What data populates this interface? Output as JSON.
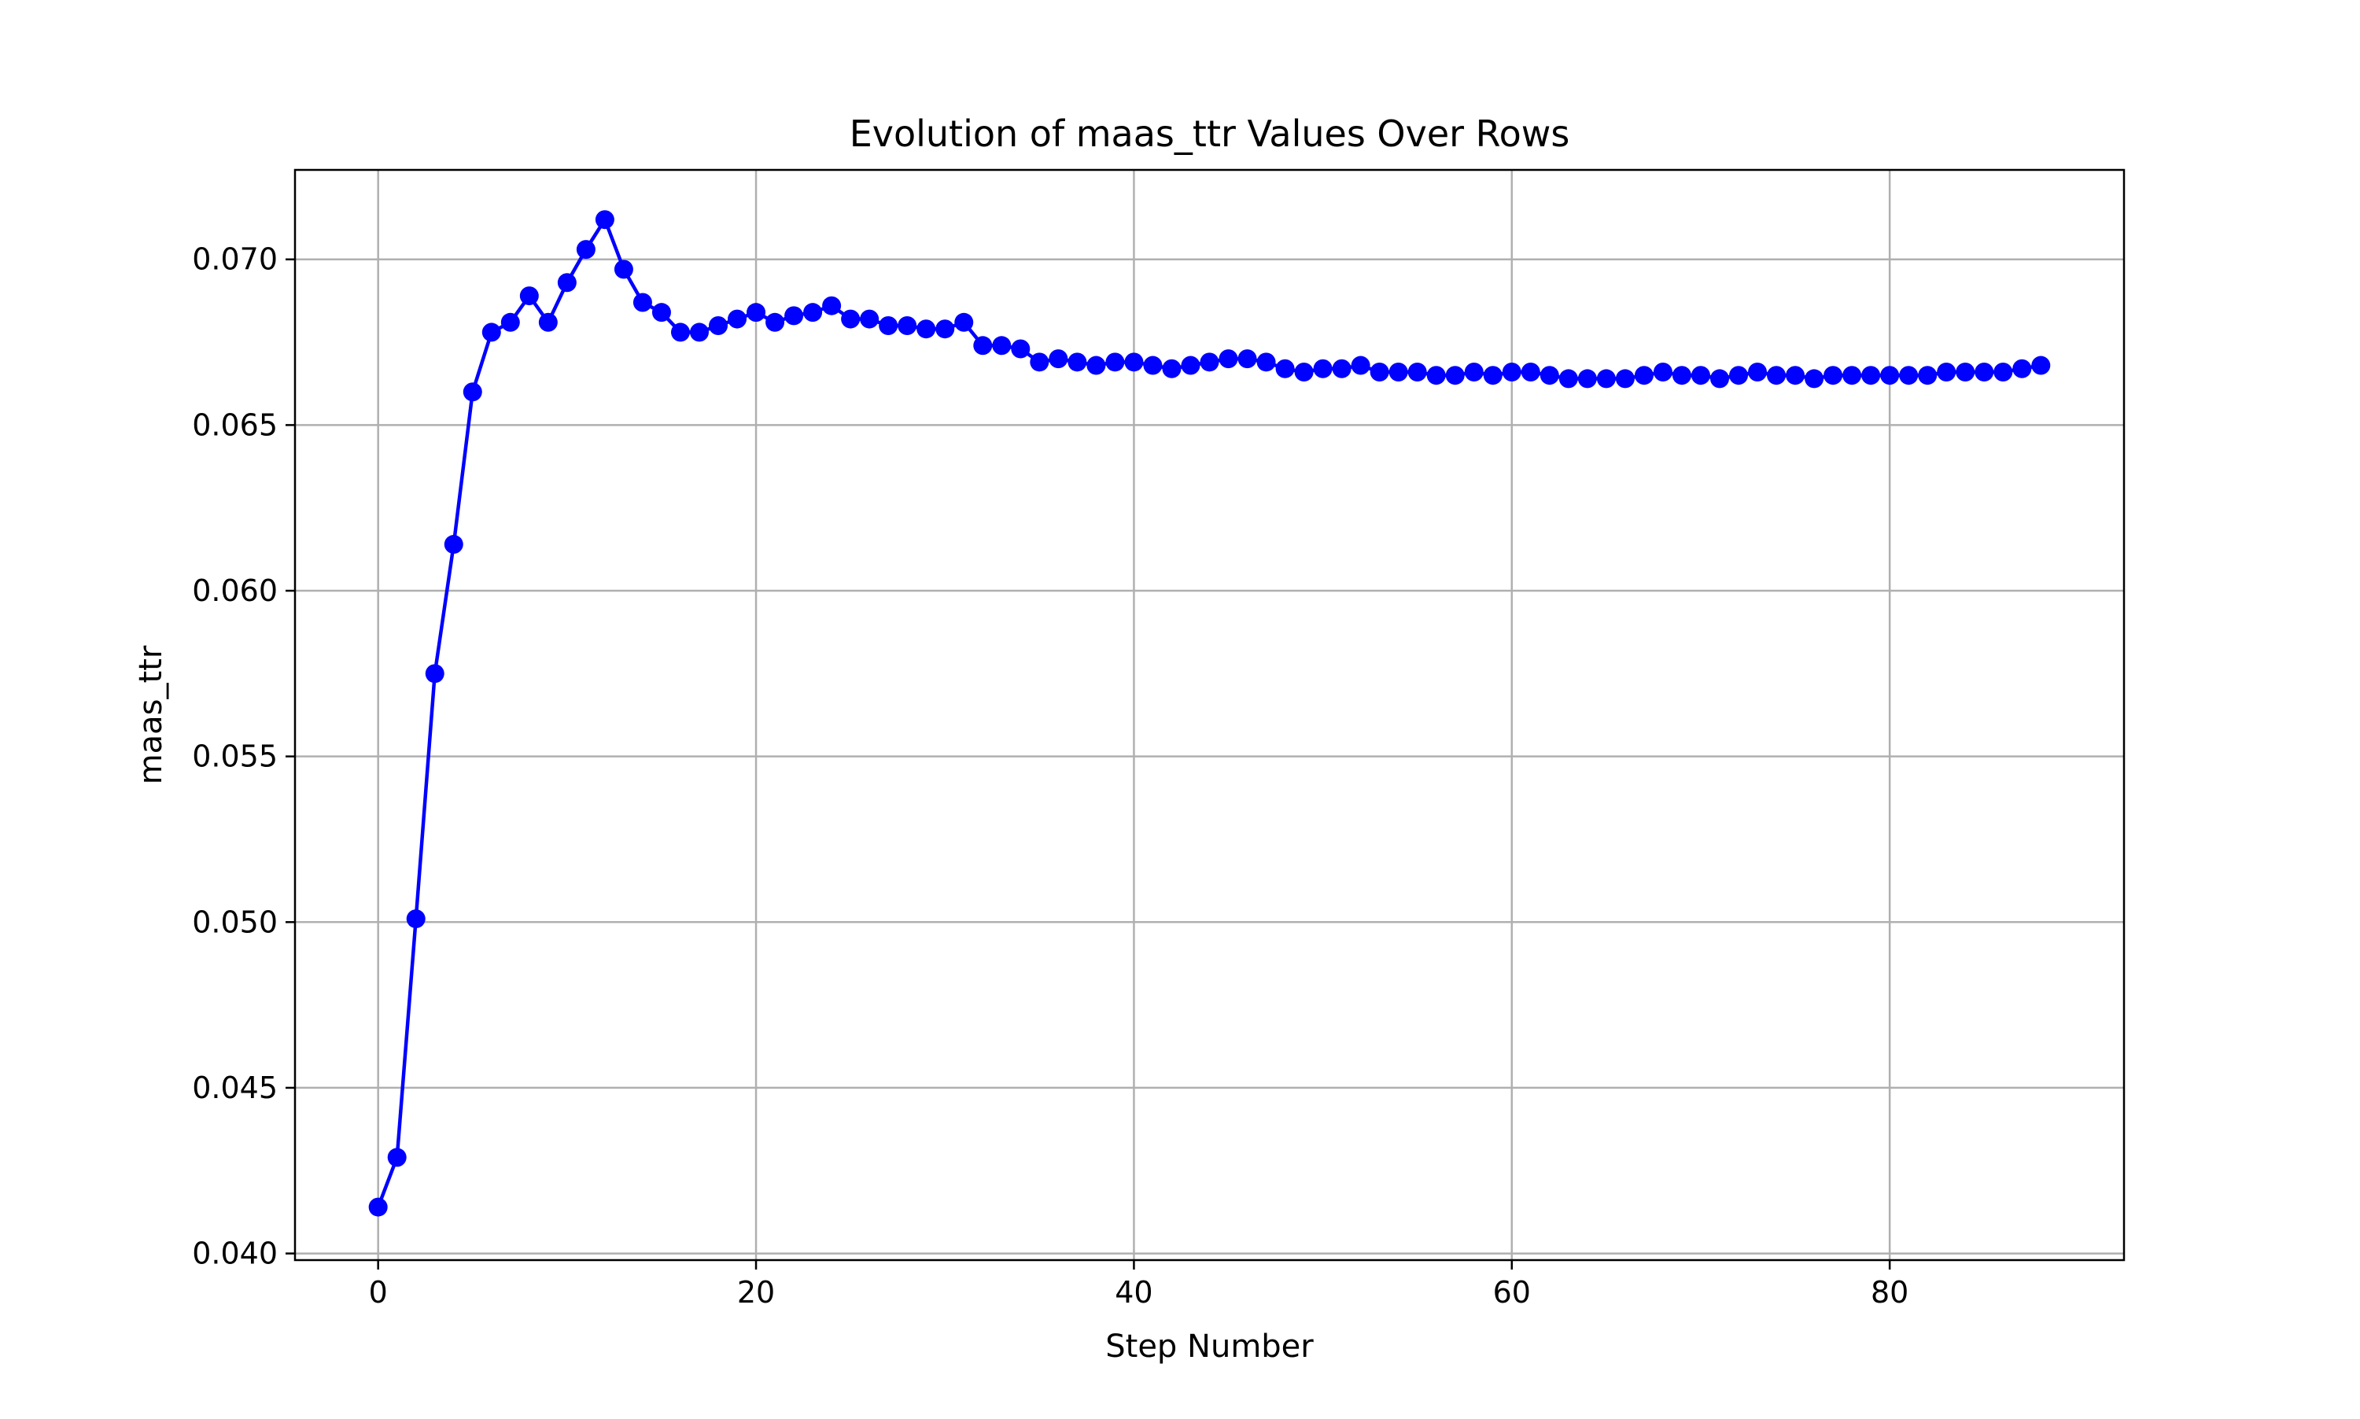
{
  "chart_data": {
    "type": "line",
    "title": "Evolution of maas_ttr Values Over Rows",
    "xlabel": "Step Number",
    "ylabel": "maas_ttr",
    "xlim": [
      -4.4,
      92.4
    ],
    "ylim": [
      0.0398,
      0.0727
    ],
    "xticks": [
      0,
      20,
      40,
      60,
      80
    ],
    "xtick_labels": [
      "0",
      "20",
      "40",
      "60",
      "80"
    ],
    "yticks": [
      0.04,
      0.045,
      0.05,
      0.055,
      0.06,
      0.065,
      0.07
    ],
    "ytick_labels": [
      "0.040",
      "0.045",
      "0.050",
      "0.055",
      "0.060",
      "0.065",
      "0.070"
    ],
    "grid": true,
    "legend": "none",
    "line_color": "#0000ff",
    "marker": "circle",
    "series": [
      {
        "x": [
          0,
          1,
          2,
          3,
          4,
          5,
          6,
          7,
          8,
          9,
          10,
          11,
          12,
          13,
          14,
          15,
          16,
          17,
          18,
          19,
          20,
          21,
          22,
          23,
          24,
          25,
          26,
          27,
          28,
          29,
          30,
          31,
          32,
          33,
          34,
          35,
          36,
          37,
          38,
          39,
          40,
          41,
          42,
          43,
          44,
          45,
          46,
          47,
          48,
          49,
          50,
          51,
          52,
          53,
          54,
          55,
          56,
          57,
          58,
          59,
          60,
          61,
          62,
          63,
          64,
          65,
          66,
          67,
          68,
          69,
          70,
          71,
          72,
          73,
          74,
          75,
          76,
          77,
          78,
          79,
          80,
          81,
          82,
          83,
          84,
          85,
          86,
          87,
          88
        ],
        "y": [
          0.0414,
          0.0429,
          0.0501,
          0.0575,
          0.0614,
          0.066,
          0.0678,
          0.0681,
          0.0689,
          0.0681,
          0.0693,
          0.0703,
          0.0712,
          0.0697,
          0.0687,
          0.0684,
          0.0678,
          0.0678,
          0.068,
          0.0682,
          0.0684,
          0.0681,
          0.0683,
          0.0684,
          0.0686,
          0.0682,
          0.0682,
          0.068,
          0.068,
          0.0679,
          0.0679,
          0.0681,
          0.0674,
          0.0674,
          0.0673,
          0.0669,
          0.067,
          0.0669,
          0.0668,
          0.0669,
          0.0669,
          0.0668,
          0.0667,
          0.0668,
          0.0669,
          0.067,
          0.067,
          0.0669,
          0.0667,
          0.0666,
          0.0667,
          0.0667,
          0.0668,
          0.0666,
          0.0666,
          0.0666,
          0.0665,
          0.0665,
          0.0666,
          0.0665,
          0.0666,
          0.0666,
          0.0665,
          0.0664,
          0.0664,
          0.0664,
          0.0664,
          0.0665,
          0.0666,
          0.0665,
          0.0665,
          0.0664,
          0.0665,
          0.0666,
          0.0665,
          0.0665,
          0.0664,
          0.0665,
          0.0665,
          0.0665,
          0.0665,
          0.0665,
          0.0665,
          0.0666,
          0.0666,
          0.0666,
          0.0666,
          0.0667,
          0.0668
        ]
      }
    ]
  }
}
